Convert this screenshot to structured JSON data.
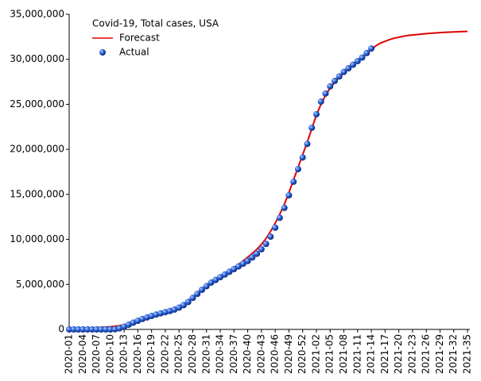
{
  "chart_data": {
    "type": "line",
    "title": "Covid-19, Total cases, USA",
    "categories": [
      "2020-01",
      null,
      null,
      "2020-04",
      null,
      null,
      "2020-07",
      null,
      null,
      "2020-10",
      null,
      null,
      "2020-13",
      null,
      null,
      "2020-16",
      null,
      null,
      "2020-19",
      null,
      null,
      "2020-22",
      null,
      null,
      "2020-25",
      null,
      null,
      "2020-28",
      null,
      null,
      "2020-31",
      null,
      null,
      "2020-34",
      null,
      null,
      "2020-37",
      null,
      null,
      "2020-40",
      null,
      null,
      "2020-43",
      null,
      null,
      "2020-46",
      null,
      null,
      "2020-49",
      null,
      null,
      "2020-52",
      null,
      null,
      "2021-02",
      null,
      null,
      "2021-05",
      null,
      null,
      "2021-08",
      null,
      null,
      "2021-11",
      null,
      null,
      "2021-14",
      null,
      null,
      "2021-17",
      null,
      null,
      "2021-20",
      null,
      null,
      "2021-23",
      null,
      null,
      "2021-26",
      null,
      null,
      "2021-29",
      null,
      null,
      "2021-32",
      null,
      null,
      "2021-35"
    ],
    "series": [
      {
        "name": "Forecast",
        "color": "#e00000",
        "style": "line",
        "values": [
          100000,
          110000,
          120000,
          140000,
          160000,
          180000,
          200000,
          230000,
          260000,
          300000,
          350000,
          420000,
          520000,
          650000,
          800000,
          980000,
          1150000,
          1330000,
          1500000,
          1650000,
          1790000,
          1920000,
          2060000,
          2220000,
          2450000,
          2750000,
          3100000,
          3530000,
          3970000,
          4400000,
          4800000,
          5200000,
          5520000,
          5850000,
          6180000,
          6520000,
          6870000,
          7230000,
          7620000,
          8020000,
          8450000,
          8900000,
          9450000,
          10100000,
          10900000,
          11800000,
          12800000,
          13900000,
          15200000,
          16600000,
          18000000,
          19400000,
          20800000,
          22300000,
          23800000,
          25000000,
          26000000,
          26800000,
          27450000,
          28000000,
          28500000,
          28950000,
          29400000,
          29800000,
          30200000,
          30650000,
          31100000,
          31500000,
          31800000,
          32000000,
          32200000,
          32350000,
          32450000,
          32550000,
          32650000,
          32700000,
          32750000,
          32800000,
          32850000,
          32900000,
          32930000,
          32960000,
          33000000,
          33020000,
          33040000,
          33060000,
          33080000,
          33100000
        ]
      },
      {
        "name": "Actual",
        "color": "#1a4fcc",
        "style": "marker",
        "values": [
          0,
          0,
          0,
          0,
          0,
          0,
          0,
          0,
          0,
          1000,
          20000,
          120000,
          300000,
          530000,
          750000,
          960000,
          1160000,
          1330000,
          1500000,
          1650000,
          1790000,
          1920000,
          2050000,
          2200000,
          2420000,
          2700000,
          3050000,
          3500000,
          3950000,
          4400000,
          4800000,
          5200000,
          5500000,
          5800000,
          6100000,
          6400000,
          6700000,
          7000000,
          7300000,
          7600000,
          8000000,
          8400000,
          8900000,
          9500000,
          10300000,
          11300000,
          12400000,
          13500000,
          14900000,
          16400000,
          17800000,
          19100000,
          20600000,
          22400000,
          23900000,
          25300000,
          26200000,
          27000000,
          27600000,
          28100000,
          28600000,
          29000000,
          29400000,
          29800000,
          30200000,
          30700000,
          31200000,
          null,
          null,
          null,
          null,
          null,
          null,
          null,
          null,
          null,
          null,
          null,
          null,
          null,
          null,
          null,
          null,
          null,
          null,
          null,
          null,
          null
        ]
      }
    ],
    "ylim": [
      0,
      35000000
    ],
    "yticks": [
      0,
      {
        "value": 5000000,
        "label": "5,000,000"
      },
      {
        "value": 10000000,
        "label": "10,000,000"
      },
      {
        "value": 15000000,
        "label": "15,000,000"
      },
      {
        "value": 20000000,
        "label": "20,000,000"
      },
      {
        "value": 25000000,
        "label": "25,000,000"
      },
      {
        "value": 30000000,
        "label": "30,000,000"
      },
      {
        "value": 35000000,
        "label": "35,000,000"
      }
    ],
    "grid": false
  }
}
